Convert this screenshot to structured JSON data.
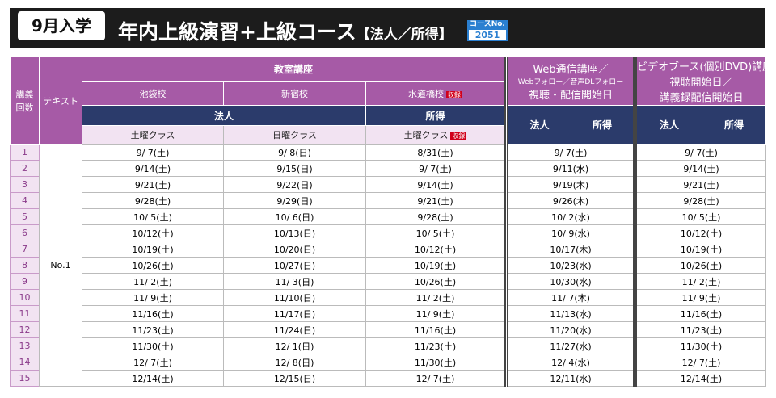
{
  "header": {
    "term": "9月入学",
    "title": "年内上級演習+上級コース",
    "subtitle": "【法人／所得】",
    "course_no_label": "コースNo.",
    "course_no": "2051"
  },
  "table": {
    "lecture_header": [
      "講義",
      "回数"
    ],
    "text_header": "テキスト",
    "classroom": "教室講座",
    "schools": [
      "池袋校",
      "新宿校",
      "水道橋校"
    ],
    "recorded": "収録",
    "web_header": [
      "Web通信講座／",
      "Webフォロー／音声DLフォロー",
      "視聴・配信開始日"
    ],
    "video_header": [
      "ビデオブース(個別DVD)講座",
      "視聴開始日／",
      "講義録配信開始日"
    ],
    "corporate": "法人",
    "income": "所得",
    "classes": [
      "土曜クラス",
      "日曜クラス",
      "土曜クラス"
    ],
    "text_name": "No.1",
    "rows": [
      [
        "1",
        "9/ 7(土)",
        "9/ 8(日)",
        "8/31(土)",
        "9/ 7(土)",
        "9/ 7(土)"
      ],
      [
        "2",
        "9/14(土)",
        "9/15(日)",
        "9/ 7(土)",
        "9/11(水)",
        "9/14(土)"
      ],
      [
        "3",
        "9/21(土)",
        "9/22(日)",
        "9/14(土)",
        "9/19(木)",
        "9/21(土)"
      ],
      [
        "4",
        "9/28(土)",
        "9/29(日)",
        "9/21(土)",
        "9/26(木)",
        "9/28(土)"
      ],
      [
        "5",
        "10/ 5(土)",
        "10/ 6(日)",
        "9/28(土)",
        "10/ 2(水)",
        "10/ 5(土)"
      ],
      [
        "6",
        "10/12(土)",
        "10/13(日)",
        "10/ 5(土)",
        "10/ 9(水)",
        "10/12(土)"
      ],
      [
        "7",
        "10/19(土)",
        "10/20(日)",
        "10/12(土)",
        "10/17(木)",
        "10/19(土)"
      ],
      [
        "8",
        "10/26(土)",
        "10/27(日)",
        "10/19(土)",
        "10/23(水)",
        "10/26(土)"
      ],
      [
        "9",
        "11/ 2(土)",
        "11/ 3(日)",
        "10/26(土)",
        "10/30(水)",
        "11/ 2(土)"
      ],
      [
        "10",
        "11/ 9(土)",
        "11/10(日)",
        "11/ 2(土)",
        "11/ 7(木)",
        "11/ 9(土)"
      ],
      [
        "11",
        "11/16(土)",
        "11/17(日)",
        "11/ 9(土)",
        "11/13(水)",
        "11/16(土)"
      ],
      [
        "12",
        "11/23(土)",
        "11/24(日)",
        "11/16(土)",
        "11/20(水)",
        "11/23(土)"
      ],
      [
        "13",
        "11/30(土)",
        "12/ 1(日)",
        "11/23(土)",
        "11/27(水)",
        "11/30(土)"
      ],
      [
        "14",
        "12/ 7(土)",
        "12/ 8(日)",
        "11/30(土)",
        "12/ 4(水)",
        "12/ 7(土)"
      ],
      [
        "15",
        "12/14(土)",
        "12/15(日)",
        "12/ 7(土)",
        "12/11(水)",
        "12/14(土)"
      ]
    ]
  }
}
